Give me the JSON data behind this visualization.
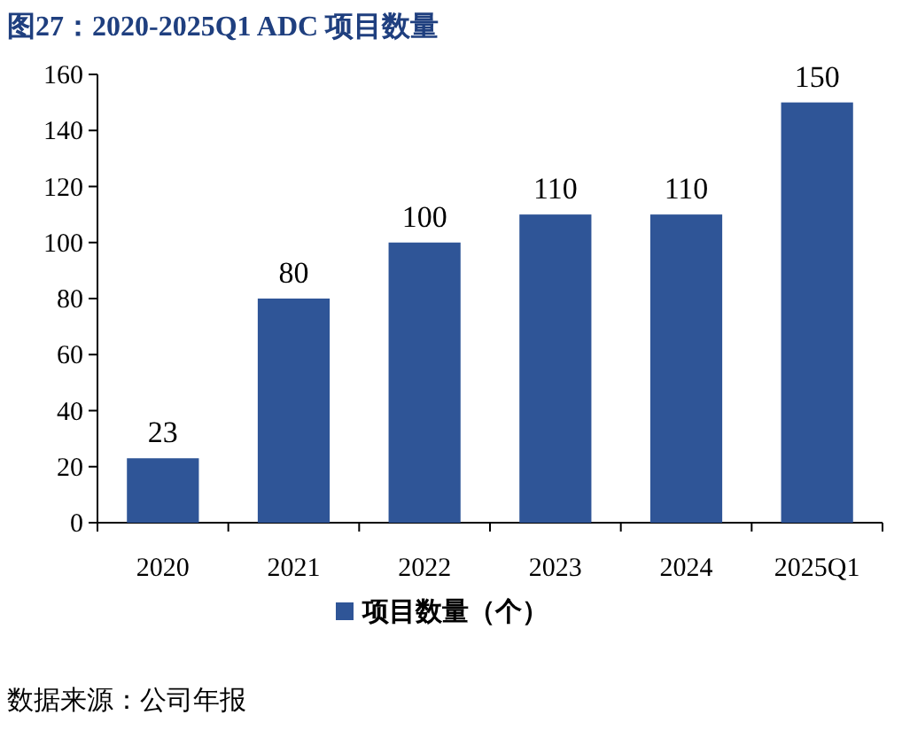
{
  "chart_data": {
    "type": "bar",
    "title": "图27：2020-2025Q1 ADC 项目数量",
    "categories": [
      "2020",
      "2021",
      "2022",
      "2023",
      "2024",
      "2025Q1"
    ],
    "series": [
      {
        "name": "项目数量（个）",
        "color": "#2f5597",
        "values": [
          23,
          80,
          100,
          110,
          110,
          150
        ]
      }
    ],
    "ylim": [
      0,
      160
    ],
    "yticks": [
      0,
      20,
      40,
      60,
      80,
      100,
      120,
      140,
      160
    ],
    "data_labels": true,
    "legend": "bottom",
    "annotations": [
      "数据来源：公司年报"
    ]
  }
}
